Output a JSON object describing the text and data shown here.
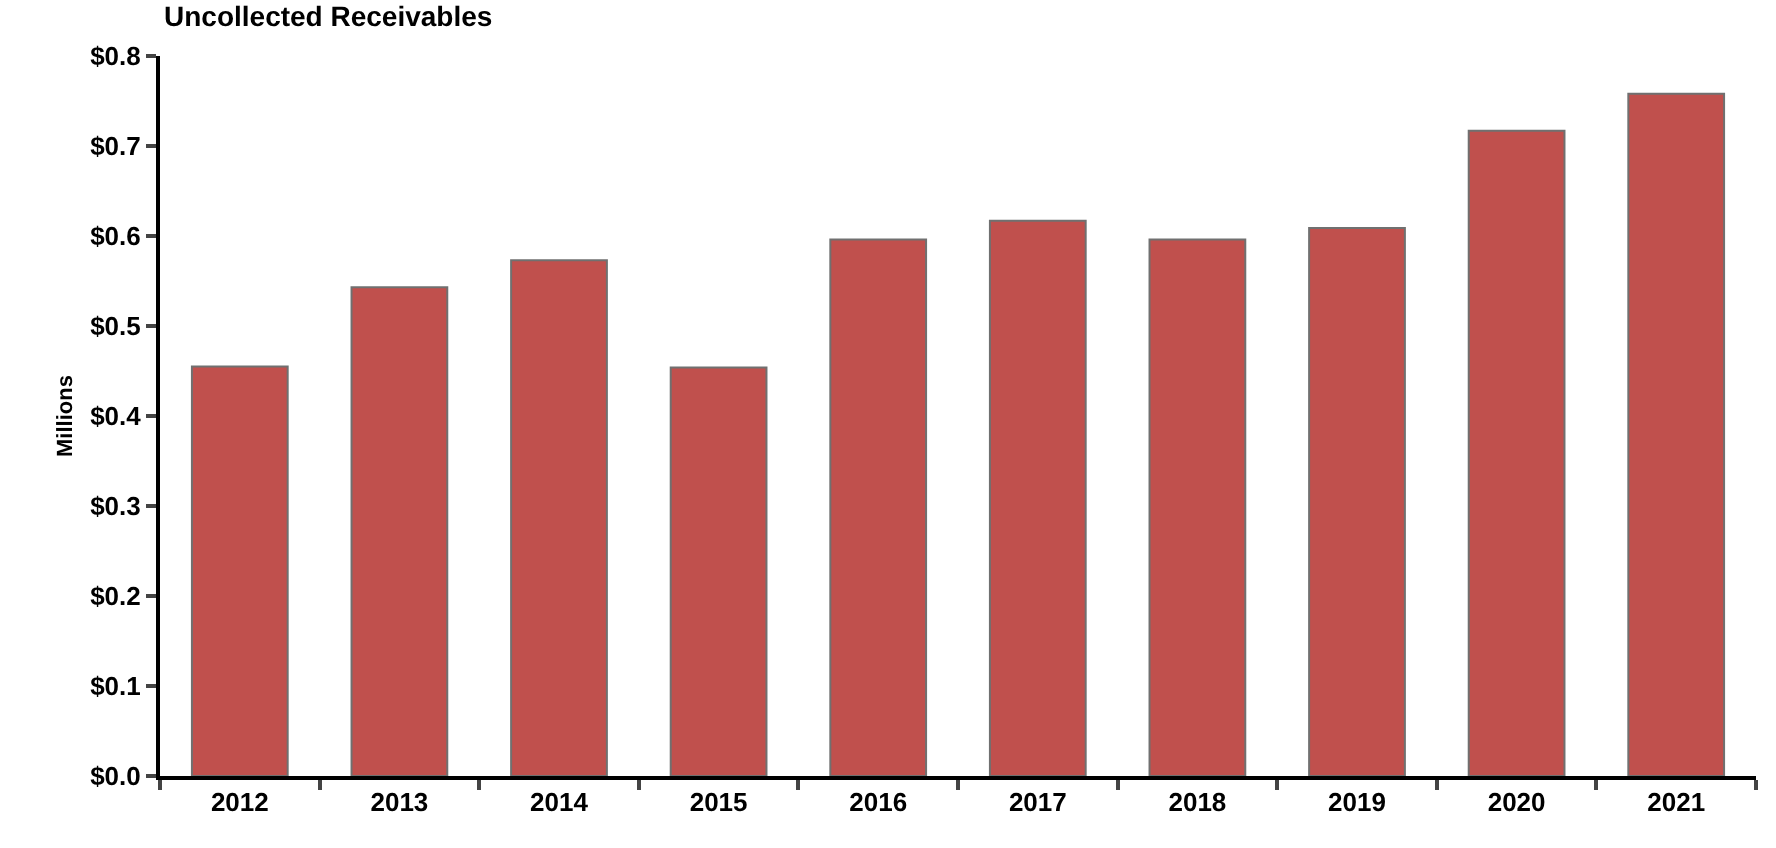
{
  "chart_data": {
    "type": "bar",
    "title": "Uncollected Receivables",
    "ylabel": "Millions",
    "categories": [
      "2012",
      "2013",
      "2014",
      "2015",
      "2016",
      "2017",
      "2018",
      "2019",
      "2020",
      "2021"
    ],
    "values": [
      0.455,
      0.543,
      0.573,
      0.454,
      0.596,
      0.617,
      0.596,
      0.609,
      0.717,
      0.758
    ],
    "color": "#c0504d",
    "ylim": [
      0,
      0.8
    ],
    "yticks": [
      {
        "value": 0,
        "label": "$0.0"
      },
      {
        "value": 0.1,
        "label": "$0.1"
      },
      {
        "value": 0.2,
        "label": "$0.2"
      },
      {
        "value": 0.3,
        "label": "$0.3"
      },
      {
        "value": 0.4,
        "label": "$0.4"
      },
      {
        "value": 0.5,
        "label": "$0.5"
      },
      {
        "value": 0.6,
        "label": "$0.6"
      },
      {
        "value": 0.7,
        "label": "$0.7"
      },
      {
        "value": 0.8,
        "label": "$0.8"
      }
    ],
    "legend": false
  }
}
